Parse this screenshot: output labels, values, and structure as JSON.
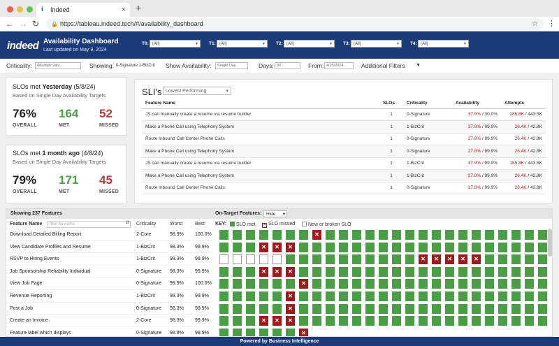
{
  "browser": {
    "tab_title": "Indeed",
    "url": "https://tableau.indeed.tech/#/availability_dashboard"
  },
  "header": {
    "logo": "indeed",
    "title": "Availability Dashboard",
    "updated": "Last updated on May 9, 2024",
    "tiers": [
      {
        "label": "T0:",
        "value": "(All)"
      },
      {
        "label": "T1:",
        "value": "(All)"
      },
      {
        "label": "T2:",
        "value": "(All)"
      },
      {
        "label": "T3:",
        "value": "(All)"
      },
      {
        "label": "T4:",
        "value": "(All)"
      }
    ]
  },
  "filters": {
    "criticality_label": "Criticality:",
    "criticality_value": "(Multiple valu...",
    "showing_label": "Showing:",
    "showing_value": "0-Signature   1-BizCrit",
    "avail_label": "Show Availability:",
    "avail_value": "Single Day",
    "days_label": "Days:",
    "days_value": "30",
    "from_label": "From:",
    "from_value": "4/25/2024",
    "additional": "Additional Filters"
  },
  "card1": {
    "title_pre": "SLOs met ",
    "title_bold": "Yesterday",
    "title_post": " (5/8/24)",
    "sub": "Based on Single Day Availability Targets",
    "overall": "76%",
    "met": "164",
    "missed": "52",
    "overall_label": "OVERALL",
    "met_label": "MET",
    "missed_label": "MISSED"
  },
  "card2": {
    "title_pre": "SLOs met ",
    "title_bold": "1 month ago",
    "title_post": " (4/8/24)",
    "sub": "Based on Single Day Availability Targets",
    "overall": "79%",
    "met": "171",
    "missed": "45",
    "overall_label": "OVERALL",
    "met_label": "MET",
    "missed_label": "MISSED"
  },
  "sli": {
    "title": "SLI's",
    "select": "Lowest Performing",
    "headers": [
      "Feature Name",
      "SLOs",
      "Criticality",
      "Availability",
      "Attempts"
    ],
    "rows": [
      {
        "name": "JS can manually create a resume via resume builder",
        "slos": "1",
        "crit": "0-Signature",
        "avail": "37.9%",
        "target": " / 30.0%",
        "att": "185.8K",
        "total": " / 443.5K"
      },
      {
        "name": "Make a Phone Call using Telephony System",
        "slos": "1",
        "crit": "1-BizCrit",
        "avail": "27.8%",
        "target": " / 99.9%",
        "att": "26.4K",
        "total": " / 42.8K"
      },
      {
        "name": "Route Inbound Call Center Phone Calls",
        "slos": "1",
        "crit": "0-Signature",
        "avail": "27.8%",
        "target": " / 99.9%",
        "att": "26.4K",
        "total": " / 42.8K"
      },
      {
        "name": "Make a Phone Call using Telephony System",
        "slos": "1",
        "crit": "0-Signature",
        "avail": "27.8%",
        "target": " / 99.9%",
        "att": "26.4K",
        "total": " / 42.8K"
      },
      {
        "name": "JS can manually create a resume via resume builder",
        "slos": "1",
        "crit": "1-BizCrit",
        "avail": "37.9%",
        "target": " / 99.9%",
        "att": "185.8K",
        "total": " / 443.5K"
      },
      {
        "name": "Make a Phone Call using Telephony System",
        "slos": "1",
        "crit": "1-BizCrit",
        "avail": "27.8%",
        "target": " / 99.9%",
        "att": "26.4K",
        "total": " / 42.8K"
      },
      {
        "name": "Route Inbound Call Center Phone Calls",
        "slos": "1",
        "crit": "0-Signature",
        "avail": "27.8%",
        "target": " / 99.9%",
        "att": "26.4K",
        "total": " / 42.8K"
      }
    ]
  },
  "features": {
    "showing": "Showing 237 Features",
    "ontarget_label": "On-Target Features:",
    "ontarget_value": "Hide",
    "col_name": "Feature Name",
    "filter_placeholder": "filter by name",
    "col_crit": "Criticality",
    "col_worst": "Worst",
    "col_best": "Best",
    "key_label": "KEY:",
    "key_met": "SLO met",
    "key_missed": "SLO missed",
    "key_new": "New or broken SLO",
    "rows": [
      {
        "name": "Download Detailed Billing Report",
        "crit": "2-Core",
        "worst": "98.9%",
        "best": "100.0%",
        "cells": "gggggggxgggggggggggggggggggg"
      },
      {
        "name": "View Candidate Profiles and Resume",
        "crit": "1-BizCrit",
        "worst": "98.3%",
        "best": "99.9%",
        "cells": "gggxxxgggggggggggggggggggggg"
      },
      {
        "name": "RSVP to Hiring Events",
        "crit": "1-BizCrit",
        "worst": "98.3%",
        "best": "99.9%",
        "cells": "nnnnnggggggggggxxxxxggggggggg"
      },
      {
        "name": "Job Sponsorship Reliability Individual",
        "crit": "0-Signature",
        "worst": "98.3%",
        "best": "99.9%",
        "cells": "gggxxxgggggggggggggggggggggg"
      },
      {
        "name": "View Job Page",
        "crit": "0-Signature",
        "worst": "99.9%",
        "best": "100.0%",
        "cells": "ggggggxggggggggggggggggggggg"
      },
      {
        "name": "Revenue Reporting",
        "crit": "1-BizCrit",
        "worst": "98.3%",
        "best": "99.9%",
        "cells": "gggggxgggggggggggggggggggggg"
      },
      {
        "name": "Post a Job",
        "crit": "0-Signature",
        "worst": "98.3%",
        "best": "99.9%",
        "cells": "gggggxgggggggggggggggggggggg"
      },
      {
        "name": "Create an Invoice",
        "crit": "2-Core",
        "worst": "98.3%",
        "best": "99.9%",
        "cells": "gggxxxgggggggggggggggggggggg"
      },
      {
        "name": "Feature label which displays",
        "crit": "0-Signature",
        "worst": "99.9%",
        "best": "99.9%",
        "cells": "ggggggx"
      }
    ]
  },
  "footer": "Powered by Business Intelligence"
}
